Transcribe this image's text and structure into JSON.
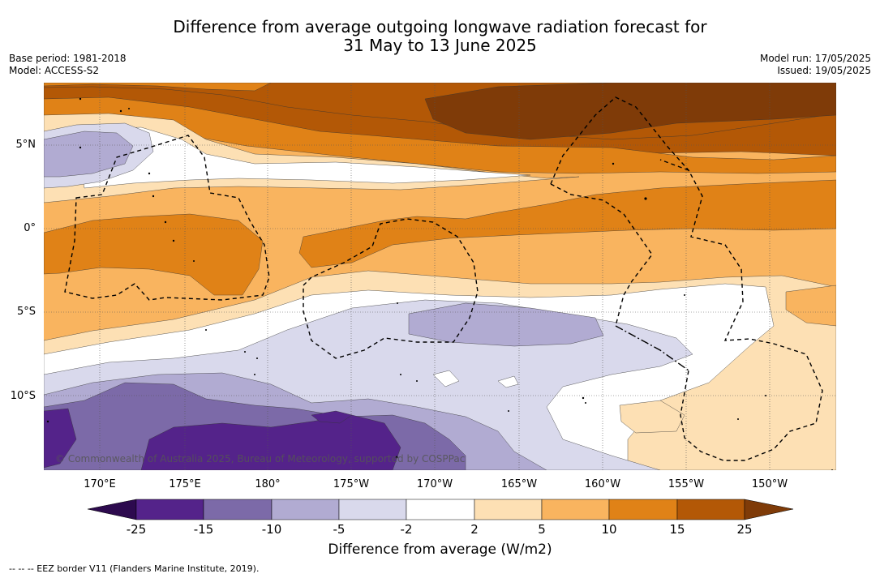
{
  "title_line1": "Difference from average outgoing longwave radiation forecast for",
  "title_line2": "31 May to 13 June 2025",
  "meta_left": {
    "base_period": "Base period: 1981-2018",
    "model": "Model: ACCESS-S2"
  },
  "meta_right": {
    "model_run": "Model run: 17/05/2025",
    "issued": "Issued: 19/05/2025"
  },
  "map": {
    "lon_labels": [
      "170°E",
      "175°E",
      "180°",
      "175°W",
      "170°W",
      "165°W",
      "160°W",
      "155°W",
      "150°W"
    ],
    "lat_labels": [
      "5°N",
      "0°",
      "5°S",
      "10°S"
    ],
    "copyright": "© Commonwealth of Australia 2025, Bureau of Meteorology, supported by COSPPac"
  },
  "colorbar": {
    "ticks": [
      "-25",
      "-15",
      "-10",
      "-5",
      "-2",
      "2",
      "5",
      "10",
      "15",
      "25"
    ],
    "colors": [
      "#2d0a4e",
      "#54238a",
      "#7c6aa8",
      "#b1abd2",
      "#d9d9ec",
      "#ffffff",
      "#fde0b4",
      "#f9b45f",
      "#e08217",
      "#b35806",
      "#7f3b08"
    ],
    "label": "Difference from average (W/m2)"
  },
  "footnote": "--  --  -- EEZ border V11 (Flanders Marine Institute, 2019)."
}
